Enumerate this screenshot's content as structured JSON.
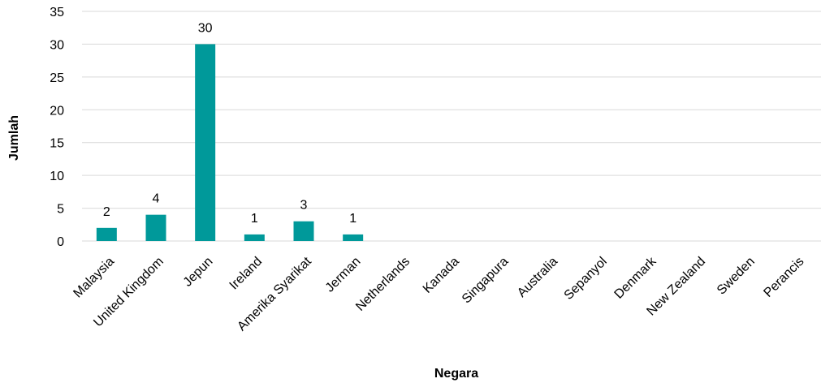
{
  "chart_data": {
    "type": "bar",
    "title": "",
    "xlabel": "Negara",
    "ylabel": "Jumlah",
    "categories": [
      "Malaysia",
      "United Kingdom",
      "Jepun",
      "Ireland",
      "Amerika Syarikat",
      "Jerman",
      "Netherlands",
      "Kanada",
      "Singapura",
      "Australia",
      "Sepanyol",
      "Denmark",
      "New Zealand",
      "Sweden",
      "Perancis"
    ],
    "values": [
      2,
      4,
      30,
      1,
      3,
      1,
      0,
      0,
      0,
      0,
      0,
      0,
      0,
      0,
      0
    ],
    "data_labels": [
      "2",
      "4",
      "30",
      "1",
      "3",
      "1",
      "",
      "",
      "",
      "",
      "",
      "",
      "",
      "",
      ""
    ],
    "ylim": [
      0,
      35
    ],
    "yticks": [
      0,
      5,
      10,
      15,
      20,
      25,
      30,
      35
    ],
    "grid": true,
    "legend": "none",
    "bar_color": "#00999a",
    "grid_color": "#d9d9d9"
  }
}
